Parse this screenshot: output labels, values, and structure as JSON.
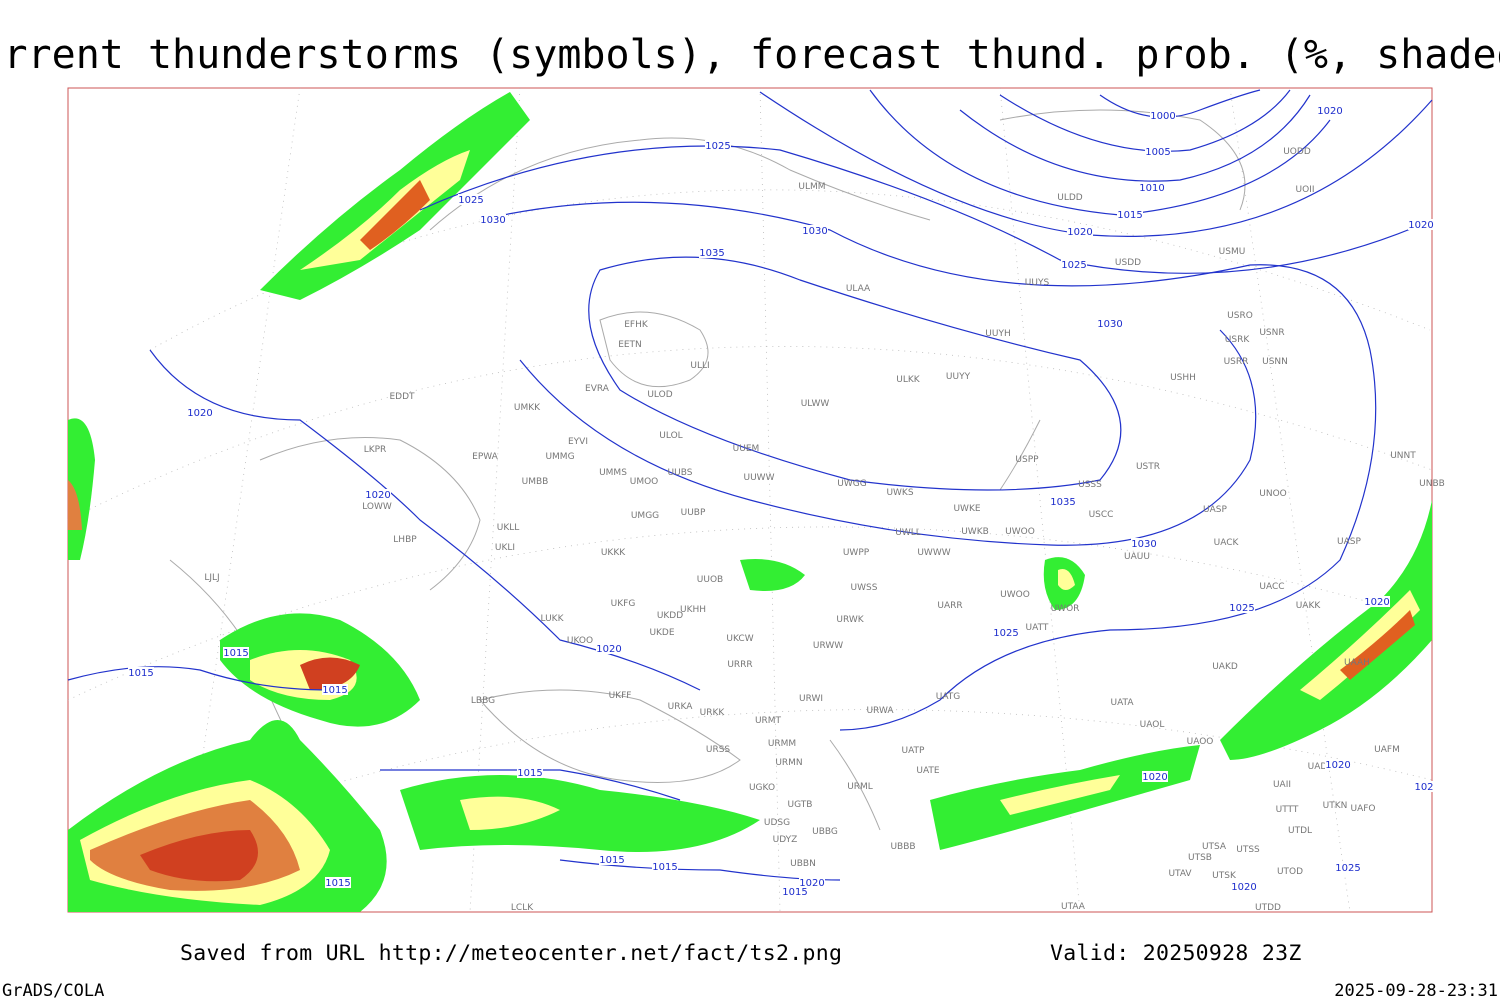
{
  "header": {
    "title": "Current thunderstorms (symbols), forecast thund. prob. (%, shaded)"
  },
  "map": {
    "isobar_labels": [
      "1000",
      "1005",
      "1010",
      "1015",
      "1020",
      "1025",
      "1030",
      "1035",
      "1030",
      "1025",
      "1020",
      "1020",
      "1020",
      "1025",
      "1025",
      "1030",
      "1030",
      "1035",
      "1020",
      "1020",
      "1015",
      "1015",
      "1015",
      "1020",
      "1025",
      "1015",
      "1015",
      "1015",
      "1015",
      "1020",
      "1015",
      "1020",
      "1020",
      "1025",
      "1020",
      "102"
    ],
    "stations": [
      "ULDD",
      "UOII",
      "UODD",
      "USMU",
      "USDD",
      "UUYS",
      "ULAA",
      "ULMM",
      "EFHK",
      "EETN",
      "ULLI",
      "USRO",
      "USRK",
      "USNR",
      "USRR",
      "USNN",
      "UUYH",
      "USHH",
      "ULKK",
      "UUYY",
      "EVRA",
      "ULOD",
      "ULWW",
      "EDDT",
      "UMKK",
      "EYVI",
      "ULOL",
      "UUEM",
      "LKPR",
      "EPWA",
      "UMMG",
      "USPP",
      "USTR",
      "UNNT",
      "UNBB",
      "UMMS",
      "UMOO",
      "UUBS",
      "UUWW",
      "UWGG",
      "UWKS",
      "USSS",
      "UNOO",
      "UMBB",
      "LOWW",
      "UUBP",
      "UWKE",
      "USCC",
      "UASP",
      "UMGG",
      "UKLL",
      "LHBP",
      "UWLL",
      "UWKB",
      "UWOO",
      "UACK",
      "UASP",
      "UKLI",
      "UKKK",
      "UWPP",
      "UWWW",
      "UAUU",
      "LJLJ",
      "UUOB",
      "UWSS",
      "UACC",
      "UKFG",
      "UKDD",
      "UKHH",
      "UARR",
      "UWOO",
      "UWOR",
      "UAKK",
      "LUKK",
      "URWK",
      "UATT",
      "UKOO",
      "UKDE",
      "UKCW",
      "URWW",
      "UAKD",
      "UAAH",
      "URRR",
      "UKFF",
      "LBBG",
      "URWI",
      "UATG",
      "URKA",
      "URKK",
      "URWA",
      "UATA",
      "URMT",
      "UAOL",
      "UAOO",
      "UAFM",
      "URMM",
      "URSS",
      "UATP",
      "URMN",
      "UATE",
      "UADL",
      "UAII",
      "UGKO",
      "URML",
      "UTTT",
      "UTKN",
      "UAFO",
      "UGTB",
      "UDSG",
      "UBBG",
      "UTDL",
      "UDYZ",
      "UBBB",
      "UTSA",
      "UTSS",
      "UTSB",
      "UBBN",
      "UTAV",
      "UTSK",
      "UTOD",
      "LCLK",
      "UTAA",
      "UTDD"
    ]
  },
  "footer": {
    "saved": "Saved from URL http://meteocenter.net/fact/ts2.png",
    "valid": "Valid: 20250928 23Z",
    "software": "GrADS/COLA",
    "timestamp": "2025-09-28-23:31"
  }
}
